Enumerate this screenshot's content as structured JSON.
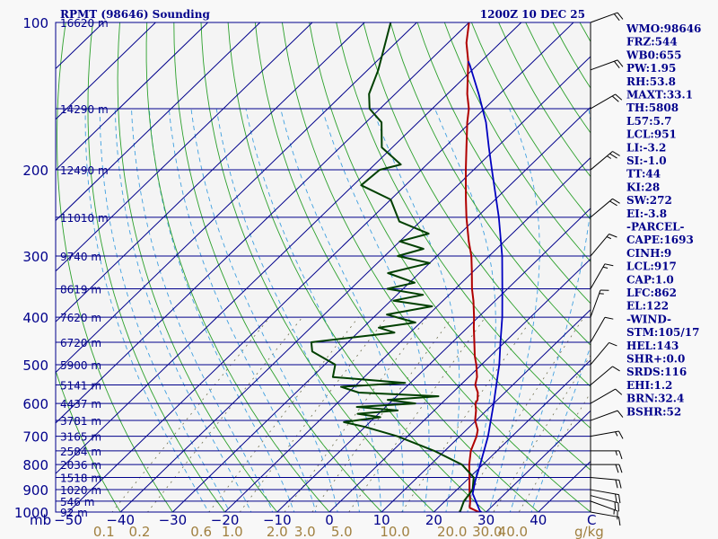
{
  "header": {
    "station": "RPMT (98646) Sounding",
    "time": "1200Z 10 DEC 25"
  },
  "colors": {
    "isobar": "#00008b",
    "isotherm": "#00008b",
    "dry_adiabat": "#2ca02c",
    "moist_adiabat": "#40a0e0",
    "mixing_ratio": "#707050",
    "temperature": "#b00000",
    "dewpoint": "#004000",
    "parcel": "#0000c0",
    "text": "#00008b",
    "mixing_label": "#a08040"
  },
  "chart_data": {
    "type": "line",
    "chart_kind": "Skew-T log-P diagram",
    "pressure_axis": {
      "unit": "mb",
      "ticks": [
        100,
        200,
        300,
        400,
        500,
        600,
        700,
        800,
        900,
        1000
      ],
      "range": [
        100,
        1000
      ],
      "scale": "log"
    },
    "temperature_axis": {
      "unit": "C",
      "ticks": [
        -50,
        -40,
        -30,
        -20,
        -10,
        0,
        10,
        20,
        30,
        40
      ],
      "tick_labels": [
        "−50",
        "−40",
        "−30",
        "−20",
        "−10",
        "0",
        "10",
        "20",
        "30",
        "40"
      ],
      "unit_label": "C"
    },
    "mixing_ratio_axis": {
      "unit_label": "g/kg",
      "ticks": [
        0.1,
        0.2,
        0.6,
        1.0,
        2.0,
        3.0,
        5.0,
        10.0,
        20.0,
        30.0,
        40.0
      ],
      "tick_labels": [
        "0.1",
        "0.2",
        "0.6",
        "1.0",
        "2.0",
        "3.0",
        "5.0",
        "10.0",
        "20.0",
        "30.0",
        "40.0"
      ]
    },
    "height_labels": [
      {
        "p": 100,
        "label": "16620 m"
      },
      {
        "p": 150,
        "label": "14290 m"
      },
      {
        "p": 200,
        "label": "12490 m"
      },
      {
        "p": 250,
        "label": "11010 m"
      },
      {
        "p": 300,
        "label": "9740 m"
      },
      {
        "p": 350,
        "label": "8619 m"
      },
      {
        "p": 400,
        "label": "7620 m"
      },
      {
        "p": 450,
        "label": "6720 m"
      },
      {
        "p": 500,
        "label": "5900 m"
      },
      {
        "p": 550,
        "label": "5141 m"
      },
      {
        "p": 600,
        "label": "4437 m"
      },
      {
        "p": 650,
        "label": "3781 m"
      },
      {
        "p": 700,
        "label": "3165 m"
      },
      {
        "p": 750,
        "label": "2584 m"
      },
      {
        "p": 800,
        "label": "2036 m"
      },
      {
        "p": 850,
        "label": "1518 m"
      },
      {
        "p": 900,
        "label": "1020 m"
      },
      {
        "p": 950,
        "label": "546 m"
      },
      {
        "p": 1000,
        "label": "92 m"
      }
    ],
    "series": [
      {
        "name": "temperature",
        "points": [
          [
            1009,
            30.0
          ],
          [
            1000,
            28.6
          ],
          [
            980,
            26.0
          ],
          [
            950,
            24.8
          ],
          [
            925,
            23.6
          ],
          [
            900,
            22.4
          ],
          [
            850,
            20.0
          ],
          [
            800,
            17.4
          ],
          [
            750,
            15.0
          ],
          [
            700,
            13.2
          ],
          [
            680,
            12.2
          ],
          [
            650,
            9.8
          ],
          [
            620,
            8.0
          ],
          [
            600,
            6.5
          ],
          [
            590,
            6.2
          ],
          [
            570,
            4.8
          ],
          [
            550,
            2.8
          ],
          [
            530,
            1.6
          ],
          [
            500,
            -1.0
          ],
          [
            480,
            -3.0
          ],
          [
            450,
            -5.8
          ],
          [
            420,
            -8.8
          ],
          [
            400,
            -10.8
          ],
          [
            370,
            -14.2
          ],
          [
            350,
            -16.8
          ],
          [
            320,
            -20.6
          ],
          [
            300,
            -23.4
          ],
          [
            280,
            -26.8
          ],
          [
            250,
            -32.0
          ],
          [
            230,
            -35.6
          ],
          [
            200,
            -41.5
          ],
          [
            180,
            -45.8
          ],
          [
            160,
            -50.6
          ],
          [
            150,
            -53.0
          ],
          [
            140,
            -56.2
          ],
          [
            120,
            -62.5
          ],
          [
            110,
            -66.5
          ],
          [
            100,
            -70.0
          ]
        ]
      },
      {
        "name": "dewpoint",
        "points": [
          [
            1009,
            25.0
          ],
          [
            1000,
            25.0
          ],
          [
            950,
            23.6
          ],
          [
            900,
            23.0
          ],
          [
            850,
            20.8
          ],
          [
            800,
            16.0
          ],
          [
            750,
            8.0
          ],
          [
            700,
            -2.0
          ],
          [
            670,
            -10.0
          ],
          [
            655,
            -15.0
          ],
          [
            640,
            -9.0
          ],
          [
            630,
            -14.0
          ],
          [
            620,
            -7.0
          ],
          [
            610,
            -15.5
          ],
          [
            600,
            -5.0
          ],
          [
            590,
            -11.0
          ],
          [
            580,
            -2.0
          ],
          [
            570,
            -18.0
          ],
          [
            555,
            -22.5
          ],
          [
            545,
            -11.0
          ],
          [
            530,
            -26.0
          ],
          [
            500,
            -28.0
          ],
          [
            470,
            -35.0
          ],
          [
            450,
            -37.0
          ],
          [
            430,
            -23.0
          ],
          [
            420,
            -27.0
          ],
          [
            410,
            -21.0
          ],
          [
            395,
            -28.0
          ],
          [
            380,
            -21.0
          ],
          [
            370,
            -29.5
          ],
          [
            360,
            -25.0
          ],
          [
            350,
            -33.0
          ],
          [
            340,
            -29.0
          ],
          [
            325,
            -36.0
          ],
          [
            310,
            -30.0
          ],
          [
            300,
            -37.5
          ],
          [
            290,
            -34.0
          ],
          [
            280,
            -40.0
          ],
          [
            270,
            -36.0
          ],
          [
            255,
            -44.0
          ],
          [
            230,
            -50.0
          ],
          [
            215,
            -58.5
          ],
          [
            200,
            -58.0
          ],
          [
            195,
            -55.0
          ],
          [
            180,
            -62.0
          ],
          [
            160,
            -67.0
          ],
          [
            150,
            -72.0
          ],
          [
            140,
            -75.0
          ],
          [
            125,
            -78.0
          ],
          [
            110,
            -82.0
          ],
          [
            100,
            -85.0
          ]
        ]
      },
      {
        "name": "parcel",
        "points": [
          [
            1009,
            30.0
          ],
          [
            995,
            28.6
          ],
          [
            917,
            23.8
          ],
          [
            862,
            21.7
          ],
          [
            800,
            19.5
          ],
          [
            700,
            15.4
          ],
          [
            600,
            10.0
          ],
          [
            500,
            3.4
          ],
          [
            450,
            -0.8
          ],
          [
            400,
            -5.4
          ],
          [
            350,
            -11.0
          ],
          [
            300,
            -17.5
          ],
          [
            250,
            -25.8
          ],
          [
            200,
            -36.5
          ],
          [
            180,
            -41.5
          ],
          [
            160,
            -47.0
          ],
          [
            140,
            -54.0
          ],
          [
            122,
            -61.5
          ],
          [
            120,
            -62.5
          ]
        ]
      }
    ],
    "winds": [
      {
        "p": 1000,
        "dir": 100,
        "spd": 10
      },
      {
        "p": 950,
        "dir": 110,
        "spd": 15
      },
      {
        "p": 925,
        "dir": 105,
        "spd": 20
      },
      {
        "p": 900,
        "dir": 100,
        "spd": 20
      },
      {
        "p": 850,
        "dir": 95,
        "spd": 20
      },
      {
        "p": 800,
        "dir": 90,
        "spd": 20
      },
      {
        "p": 750,
        "dir": 90,
        "spd": 15
      },
      {
        "p": 700,
        "dir": 80,
        "spd": 15
      },
      {
        "p": 650,
        "dir": 70,
        "spd": 10
      },
      {
        "p": 600,
        "dir": 60,
        "spd": 10
      },
      {
        "p": 550,
        "dir": 50,
        "spd": 10
      },
      {
        "p": 500,
        "dir": 40,
        "spd": 10
      },
      {
        "p": 450,
        "dir": 30,
        "spd": 10
      },
      {
        "p": 400,
        "dir": 20,
        "spd": 15
      },
      {
        "p": 350,
        "dir": 30,
        "spd": 15
      },
      {
        "p": 300,
        "dir": 40,
        "spd": 15
      },
      {
        "p": 250,
        "dir": 50,
        "spd": 20
      },
      {
        "p": 200,
        "dir": 50,
        "spd": 25
      },
      {
        "p": 150,
        "dir": 60,
        "spd": 20
      },
      {
        "p": 125,
        "dir": 70,
        "spd": 20
      },
      {
        "p": 100,
        "dir": 70,
        "spd": 20
      }
    ]
  },
  "indices": [
    "WMO:98646",
    "FRZ:544",
    "WB0:655",
    "PW:1.95",
    "RH:53.8",
    "MAXT:33.1",
    "TH:5808",
    "L57:5.7",
    "LCL:951",
    "LI:-3.2",
    "SI:-1.0",
    "TT:44",
    "KI:28",
    "SW:272",
    "EI:-3.8",
    "-PARCEL-",
    "CAPE:1693",
    "CINH:9",
    "LCL:917",
    "CAP:1.0",
    "LFC:862",
    "EL:122",
    "-WIND-",
    "STM:105/17",
    "HEL:143",
    "SHR+:0.0",
    "SRDS:116",
    "EHI:1.2",
    "BRN:32.4",
    "BSHR:52"
  ]
}
